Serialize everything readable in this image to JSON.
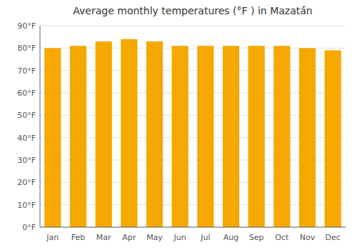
{
  "chart_data": {
    "type": "bar",
    "title": "Average monthly temperatures (°F ) in Mazatá́n",
    "categories": [
      "Jan",
      "Feb",
      "Mar",
      "Apr",
      "May",
      "Jun",
      "Jul",
      "Aug",
      "Sep",
      "Oct",
      "Nov",
      "Dec"
    ],
    "values": [
      80,
      81,
      83,
      84,
      83,
      81,
      81,
      81,
      81,
      81,
      80,
      79
    ],
    "color": "#F5A800",
    "ylim": [
      0,
      90
    ],
    "yticks": [
      {
        "value": 0,
        "label": "0°F"
      },
      {
        "value": 10,
        "label": "10°F"
      },
      {
        "value": 20,
        "label": "20°F"
      },
      {
        "value": 30,
        "label": "30°F"
      },
      {
        "value": 40,
        "label": "40°F"
      },
      {
        "value": 50,
        "label": "50°F"
      },
      {
        "value": 60,
        "label": "60°F"
      },
      {
        "value": 70,
        "label": "70°F"
      },
      {
        "value": 80,
        "label": "80°F"
      },
      {
        "value": 90,
        "label": "90°F"
      }
    ],
    "grid": true
  }
}
